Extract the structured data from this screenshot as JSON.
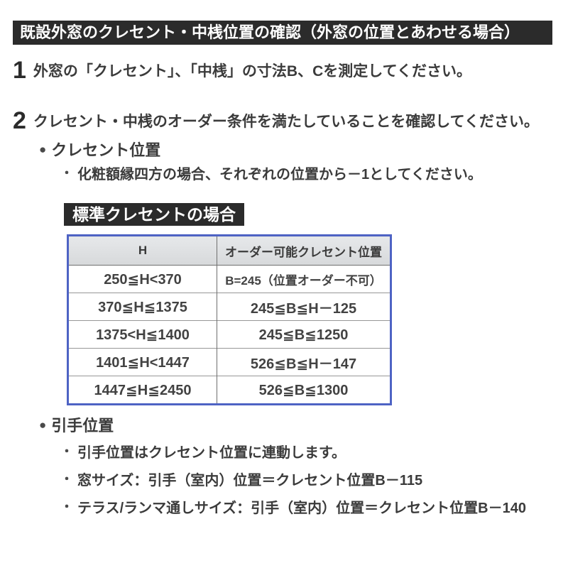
{
  "title_bar": {
    "text": "既設外窓のクレセント・中桟位置の確認（外窓の位置とあわせる場合）"
  },
  "steps": [
    {
      "number": "1",
      "text": "外窓の「クレセント」、「中桟」の寸法B、Cを測定してください。"
    },
    {
      "number": "2",
      "text": "クレセント・中桟のオーダー条件を満たしていることを確認してください。"
    }
  ],
  "bullets": {
    "section": "●",
    "item": "・"
  },
  "crescent_section": {
    "heading": "クレセント位置",
    "note": "化粧額縁四方の場合、それぞれの位置から－1としてください。",
    "table_label": "標準クレセントの場合"
  },
  "table": {
    "columns": [
      "H",
      "オーダー可能クレセント位置"
    ],
    "rows": [
      [
        "250≦H<370",
        "B=245（位置オーダー不可）"
      ],
      [
        "370≦H≦1375",
        "245≦B≦H－125"
      ],
      [
        "1375<H≦1400",
        "245≦B≦1250"
      ],
      [
        "1401≦H<1447",
        "526≦B≦H－147"
      ],
      [
        "1447≦H≦2450",
        "526≦B≦1300"
      ]
    ]
  },
  "handle_section": {
    "heading": "引手位置",
    "items": [
      "引手位置はクレセント位置に連動します。",
      "窓サイズ：引手（室内）位置＝クレセント位置B－115",
      "テラス/ランマ通しサイズ：引手（室内）位置＝クレセント位置B－140"
    ]
  },
  "colors": {
    "header_bg": "#2b2b2b",
    "table_border": "#4e63c4",
    "table_header_bg": "#dfe1e3",
    "text": "#3b3b3b"
  }
}
